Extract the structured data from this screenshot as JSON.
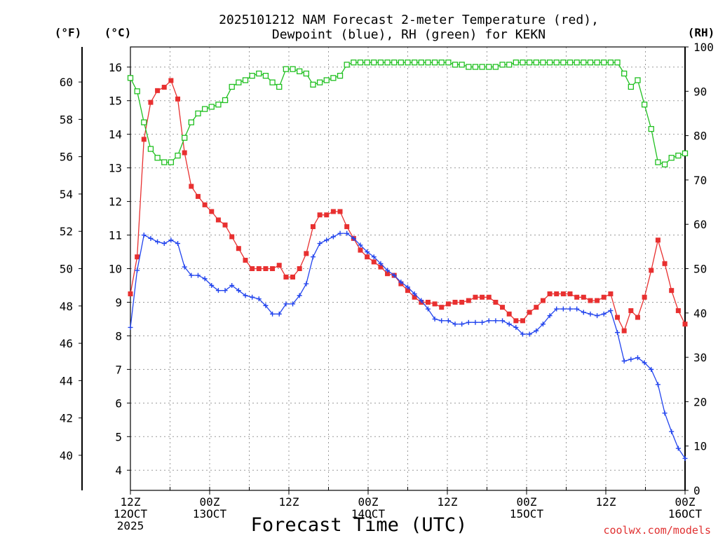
{
  "chart_data": {
    "type": "line",
    "title": "2025101212 NAM Forecast 2-meter Temperature (red),",
    "subtitle": "Dewpoint (blue), RH (green) for KEKN",
    "xlabel": "Forecast Time (UTC)",
    "credit": "coolwx.com/models",
    "units": {
      "fahrenheit": "(°F)",
      "celsius": "(°C)",
      "rh": "(RH)"
    },
    "x_range_hours": [
      0,
      84
    ],
    "celsius_axis": {
      "range": [
        3.4,
        16.6
      ],
      "ticks": [
        "4",
        "5",
        "6",
        "7",
        "8",
        "9",
        "10",
        "11",
        "12",
        "13",
        "14",
        "15",
        "16"
      ]
    },
    "fahrenheit_axis": {
      "range": [
        38.12,
        61.88
      ],
      "ticks": [
        "40",
        "42",
        "44",
        "46",
        "48",
        "50",
        "52",
        "54",
        "56",
        "58",
        "60"
      ]
    },
    "rh_axis": {
      "range": [
        0,
        100
      ],
      "ticks": [
        "0",
        "10",
        "20",
        "30",
        "40",
        "50",
        "60",
        "70",
        "80",
        "90",
        "100"
      ]
    },
    "x_ticks": [
      {
        "hour": 0,
        "lines": [
          "12Z",
          "12OCT",
          "2025"
        ]
      },
      {
        "hour": 12,
        "lines": [
          "00Z",
          "13OCT"
        ]
      },
      {
        "hour": 24,
        "lines": [
          "12Z"
        ]
      },
      {
        "hour": 36,
        "lines": [
          "00Z",
          "14OCT"
        ]
      },
      {
        "hour": 48,
        "lines": [
          "12Z"
        ]
      },
      {
        "hour": 60,
        "lines": [
          "00Z",
          "15OCT"
        ]
      },
      {
        "hour": 72,
        "lines": [
          "12Z"
        ]
      },
      {
        "hour": 84,
        "lines": [
          "00Z",
          "16OCT"
        ]
      }
    ],
    "series": [
      {
        "name": "2-meter Temperature",
        "unit": "C",
        "color": "#e83030",
        "marker": "filled-square",
        "values": [
          9.25,
          10.35,
          13.85,
          14.95,
          15.3,
          15.4,
          15.6,
          15.05,
          13.45,
          12.45,
          12.15,
          11.9,
          11.7,
          11.45,
          11.3,
          10.95,
          10.6,
          10.25,
          10.0,
          10.0,
          10.0,
          10.0,
          10.1,
          9.75,
          9.75,
          10.0,
          10.45,
          11.25,
          11.6,
          11.6,
          11.7,
          11.7,
          11.25,
          10.9,
          10.55,
          10.35,
          10.2,
          10.05,
          9.85,
          9.8,
          9.55,
          9.35,
          9.15,
          9.0,
          9.0,
          8.95,
          8.85,
          8.95,
          9.0,
          9.0,
          9.05,
          9.15,
          9.15,
          9.15,
          9.0,
          8.85,
          8.65,
          8.45,
          8.45,
          8.7,
          8.85,
          9.05,
          9.25,
          9.25,
          9.25,
          9.25,
          9.15,
          9.15,
          9.05,
          9.05,
          9.15,
          9.25,
          8.55,
          8.15,
          8.75,
          8.55,
          9.15,
          9.95,
          10.85,
          10.15,
          9.35,
          8.75,
          8.35
        ]
      },
      {
        "name": "Dewpoint",
        "unit": "C",
        "color": "#2244ee",
        "marker": "plus",
        "values": [
          8.25,
          9.95,
          11.0,
          10.9,
          10.8,
          10.75,
          10.85,
          10.75,
          10.05,
          9.8,
          9.8,
          9.7,
          9.5,
          9.35,
          9.35,
          9.5,
          9.35,
          9.2,
          9.15,
          9.1,
          8.9,
          8.65,
          8.65,
          8.95,
          8.95,
          9.2,
          9.55,
          10.35,
          10.75,
          10.85,
          10.95,
          11.05,
          11.05,
          10.9,
          10.7,
          10.5,
          10.35,
          10.15,
          9.95,
          9.8,
          9.6,
          9.45,
          9.25,
          9.05,
          8.8,
          8.5,
          8.45,
          8.45,
          8.35,
          8.35,
          8.4,
          8.4,
          8.4,
          8.45,
          8.45,
          8.45,
          8.35,
          8.25,
          8.05,
          8.05,
          8.15,
          8.35,
          8.6,
          8.8,
          8.8,
          8.8,
          8.8,
          8.7,
          8.65,
          8.6,
          8.65,
          8.75,
          8.1,
          7.25,
          7.3,
          7.35,
          7.2,
          7.0,
          6.55,
          5.7,
          5.15,
          4.65,
          4.35
        ]
      },
      {
        "name": "RH",
        "unit": "%",
        "color": "#20c020",
        "marker": "open-square",
        "values": [
          93,
          90,
          83,
          77,
          75,
          74,
          74,
          75.5,
          79.5,
          83,
          85,
          86,
          86.5,
          87,
          88,
          91,
          92,
          92.5,
          93.5,
          94,
          93.5,
          92,
          91,
          95,
          95,
          94.5,
          94,
          91.5,
          92,
          92.5,
          93,
          93.5,
          96,
          96.5,
          96.5,
          96.5,
          96.5,
          96.5,
          96.5,
          96.5,
          96.5,
          96.5,
          96.5,
          96.5,
          96.5,
          96.5,
          96.5,
          96.5,
          96,
          96,
          95.5,
          95.5,
          95.5,
          95.5,
          95.5,
          96,
          96,
          96.5,
          96.5,
          96.5,
          96.5,
          96.5,
          96.5,
          96.5,
          96.5,
          96.5,
          96.5,
          96.5,
          96.5,
          96.5,
          96.5,
          96.5,
          96.5,
          94,
          91,
          92.5,
          87,
          81.5,
          74,
          73.5,
          75,
          75.5,
          76
        ]
      }
    ]
  }
}
